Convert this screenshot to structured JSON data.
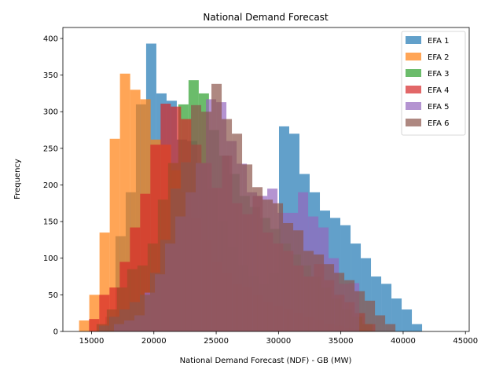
{
  "chart_data": {
    "type": "histogram",
    "title": "National Demand Forecast",
    "xlabel": "National Demand Forecast (NDF) - GB (MW)",
    "ylabel": "Frequency",
    "xlim": [
      12700,
      45300
    ],
    "ylim": [
      0,
      415
    ],
    "xticks": [
      15000,
      20000,
      25000,
      30000,
      35000,
      40000,
      45000
    ],
    "xtick_labels": [
      "15000",
      "20000",
      "25000",
      "30000",
      "35000",
      "40000",
      "45000"
    ],
    "yticks": [
      0,
      50,
      100,
      150,
      200,
      250,
      300,
      350,
      400
    ],
    "ytick_labels": [
      "0",
      "50",
      "100",
      "150",
      "200",
      "250",
      "300",
      "350",
      "400"
    ],
    "legend_position": "top-right",
    "grid": false,
    "alpha": 0.7,
    "series": [
      {
        "name": "EFA 1",
        "color": "#1f77b4",
        "bin_start": 16100,
        "bin_width": 820,
        "counts": [
          20,
          130,
          190,
          310,
          393,
          325,
          315,
          262,
          260,
          230,
          195,
          150,
          115,
          90,
          75,
          65,
          80,
          280,
          270,
          215,
          190,
          165,
          155,
          145,
          120,
          100,
          75,
          65,
          45,
          30,
          10
        ]
      },
      {
        "name": "EFA 2",
        "color": "#ff7f0e",
        "bin_start": 14000,
        "bin_width": 820,
        "counts": [
          15,
          50,
          135,
          263,
          352,
          330,
          317,
          262,
          255,
          220,
          190,
          155,
          125,
          95,
          80,
          65,
          60,
          50,
          40,
          35,
          30,
          25,
          20,
          15,
          10,
          8,
          5,
          3
        ]
      },
      {
        "name": "EFA 3",
        "color": "#2ca02c",
        "bin_start": 15400,
        "bin_width": 820,
        "counts": [
          10,
          30,
          60,
          85,
          90,
          120,
          180,
          230,
          310,
          343,
          325,
          275,
          240,
          215,
          185,
          170,
          155,
          140,
          120,
          105,
          90,
          75,
          60,
          45,
          30,
          20,
          10
        ]
      },
      {
        "name": "EFA 4",
        "color": "#d62728",
        "bin_start": 14800,
        "bin_width": 820,
        "counts": [
          17,
          50,
          60,
          95,
          142,
          188,
          255,
          311,
          307,
          290,
          255,
          230,
          196,
          240,
          175,
          160,
          185,
          135,
          120,
          110,
          90,
          75,
          92,
          70,
          50,
          40,
          25,
          10
        ]
      },
      {
        "name": "EFA 5",
        "color": "#9467bd",
        "bin_start": 16800,
        "bin_width": 820,
        "counts": [
          10,
          15,
          22,
          53,
          78,
          120,
          157,
          190,
          230,
          317,
          313,
          260,
          229,
          190,
          185,
          195,
          162,
          162,
          190,
          157,
          142,
          100,
          65,
          66
        ]
      },
      {
        "name": "EFA 6",
        "color": "#8c564b",
        "bin_start": 15600,
        "bin_width": 820,
        "counts": [
          8,
          20,
          30,
          40,
          50,
          80,
          125,
          195,
          231,
          309,
          300,
          338,
          290,
          270,
          228,
          197,
          180,
          175,
          148,
          138,
          110,
          105,
          92,
          80,
          70,
          55,
          42,
          22,
          10
        ]
      }
    ]
  }
}
